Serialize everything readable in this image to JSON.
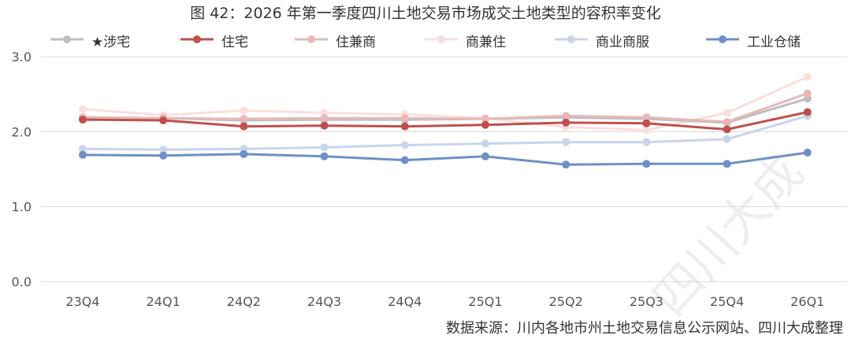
{
  "chart_data": {
    "type": "line",
    "title": "图 42：2026 年第一季度四川土地交易市场成交土地类型的容积率变化",
    "categories": [
      "23Q4",
      "24Q1",
      "24Q2",
      "24Q3",
      "24Q4",
      "25Q1",
      "25Q2",
      "25Q3",
      "25Q4",
      "26Q1"
    ],
    "ylim": [
      0,
      3.0
    ],
    "yticks": [
      "0.0",
      "1.0",
      "2.0",
      "3.0"
    ],
    "ytick_values": [
      0,
      1,
      2,
      3
    ],
    "grid": true,
    "legend_position": "top",
    "series": [
      {
        "name": "★涉宅",
        "color": "#bdbdbd",
        "values": [
          2.19,
          2.18,
          2.15,
          2.16,
          2.16,
          2.17,
          2.19,
          2.17,
          2.12,
          2.44
        ]
      },
      {
        "name": "住宅",
        "color": "#c0504d",
        "values": [
          2.16,
          2.15,
          2.07,
          2.08,
          2.07,
          2.09,
          2.12,
          2.11,
          2.03,
          2.26
        ]
      },
      {
        "name": "住兼商",
        "color": "#e6b9b8",
        "values": [
          2.19,
          2.18,
          2.17,
          2.18,
          2.18,
          2.17,
          2.21,
          2.19,
          2.13,
          2.51
        ]
      },
      {
        "name": "商兼住",
        "color": "#fadfdd",
        "values": [
          2.3,
          2.22,
          2.28,
          2.25,
          2.23,
          2.18,
          2.06,
          2.02,
          2.25,
          2.73
        ]
      },
      {
        "name": "商业商服",
        "color": "#c9d5ec",
        "values": [
          1.77,
          1.76,
          1.77,
          1.79,
          1.82,
          1.84,
          1.86,
          1.86,
          1.9,
          2.21
        ]
      },
      {
        "name": "工业仓储",
        "color": "#6f8fc7",
        "values": [
          1.69,
          1.68,
          1.7,
          1.67,
          1.62,
          1.67,
          1.56,
          1.57,
          1.57,
          1.72
        ]
      }
    ],
    "source": "数据来源：川内各地市州土地交易信息公示网站、四川大成整理",
    "watermark": "四川大成"
  }
}
